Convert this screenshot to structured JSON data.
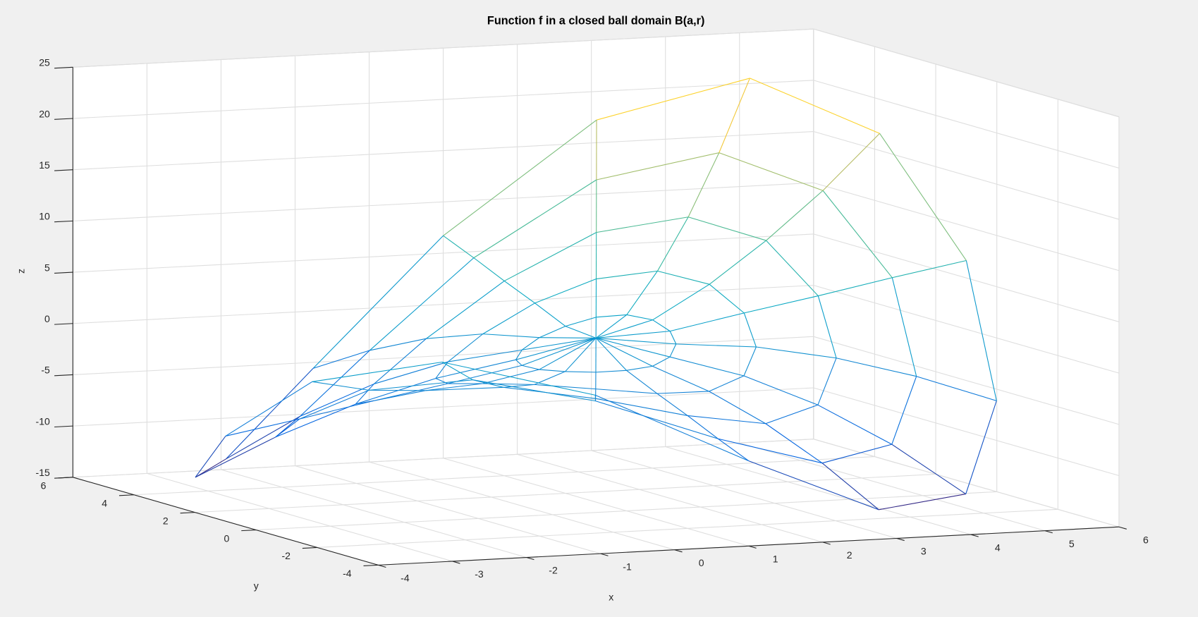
{
  "chart_data": {
    "type": "mesh3d",
    "title": "Function f in a closed ball domain B(a,r)",
    "xlabel": "x",
    "ylabel": "y",
    "zlabel": "z",
    "xlim": [
      -4,
      6
    ],
    "ylim": [
      -4,
      6
    ],
    "zlim": [
      -15,
      25
    ],
    "xticks": [
      -4,
      -3,
      -2,
      -1,
      0,
      1,
      2,
      3,
      4,
      5,
      6
    ],
    "yticks": [
      -4,
      -2,
      0,
      2,
      4,
      6
    ],
    "zticks": [
      -15,
      -10,
      -5,
      0,
      5,
      10,
      15,
      20,
      25
    ],
    "grid": true,
    "colormap": "parula",
    "center": [
      1,
      1
    ],
    "center_z": 1,
    "radii": [
      1,
      2,
      3,
      4,
      5
    ],
    "angles": [
      0,
      22.5,
      45,
      67.5,
      90,
      112.5,
      135,
      157.5,
      180,
      202.5,
      225,
      247.5,
      270,
      292.5,
      315,
      337.5
    ],
    "z": [
      [
        1.3,
        2.1,
        2.4,
        2.1,
        1.3,
        0.4,
        -0.5,
        -1.1,
        -1.3,
        -1.4,
        -1.4,
        -1.4,
        -1.3,
        -1.1,
        -0.5,
        0.4
      ],
      [
        2.7,
        4.9,
        5.8,
        4.9,
        2.7,
        0.1,
        -2,
        -2.9,
        -2.7,
        -2.1,
        -1.8,
        -2.1,
        -2.7,
        -2.9,
        -2,
        0.1
      ],
      [
        4,
        8.5,
        10.2,
        8.5,
        4,
        -1,
        -4.5,
        -5.4,
        -4,
        -2.1,
        -1.2,
        -2.1,
        -4,
        -5.4,
        -4.5,
        -1
      ],
      [
        5.4,
        12.7,
        15.6,
        12.7,
        5.4,
        -2.8,
        -8,
        -8.6,
        -5.4,
        -1.4,
        0.4,
        -1.4,
        -5.4,
        -8.6,
        -8,
        -2.8
      ],
      [
        6.7,
        17.6,
        22,
        17.6,
        6.7,
        -5.2,
        -12.5,
        -12.5,
        -6.7,
        0.1,
        3,
        0.1,
        -6.7,
        -12.5,
        -12.5,
        -5.2
      ]
    ]
  }
}
